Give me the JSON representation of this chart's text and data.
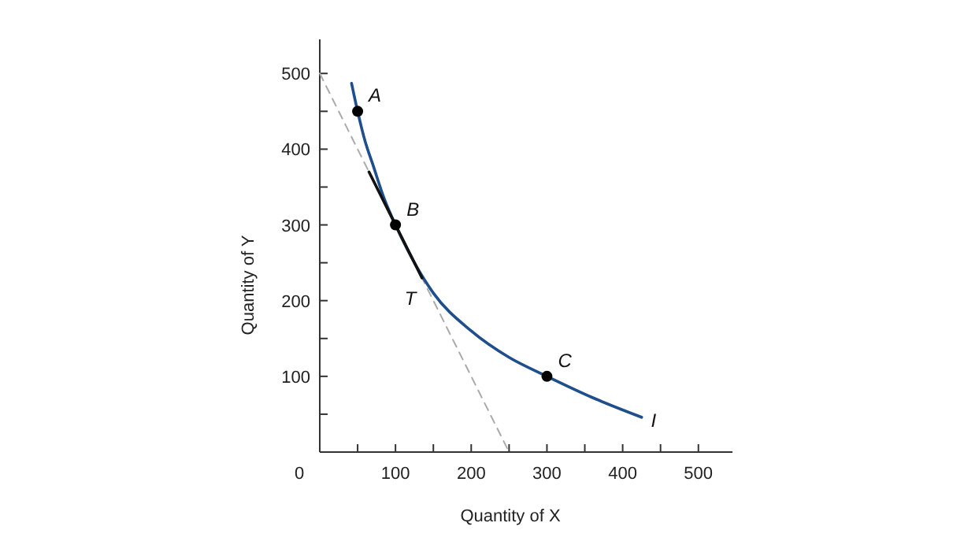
{
  "chart_data": {
    "type": "line",
    "xlabel": "Quantity of X",
    "ylabel": "Quantity of Y",
    "xlim": [
      0,
      545
    ],
    "ylim": [
      0,
      545
    ],
    "xticks": [
      {
        "value": 50,
        "label": null
      },
      100,
      {
        "value": 150,
        "label": null
      },
      200,
      {
        "value": 250,
        "label": null
      },
      300,
      {
        "value": 350,
        "label": null
      },
      400,
      {
        "value": 450,
        "label": null
      },
      500
    ],
    "yticks": [
      {
        "value": 50,
        "label": null
      },
      100,
      {
        "value": 150,
        "label": null
      },
      200,
      {
        "value": 250,
        "label": null
      },
      300,
      {
        "value": 350,
        "label": null
      },
      400,
      {
        "value": 450,
        "label": null
      },
      500
    ],
    "grid": false,
    "series": [
      {
        "color": "#aaaaaa",
        "line_style": "dashed",
        "x": [
          0,
          250
        ],
        "values": [
          500,
          0
        ]
      },
      {
        "color": "#1f4e8c",
        "line_style": "solid",
        "x": [
          42,
          50,
          60,
          70,
          85,
          100,
          125,
          150,
          200,
          250,
          300,
          360,
          425
        ],
        "values": [
          487,
          450,
          410,
          380,
          335,
          300,
          250,
          210,
          160,
          125,
          100,
          72,
          46
        ]
      },
      {
        "color": "#111111",
        "line_style": "solid",
        "x": [
          65,
          135
        ],
        "values": [
          370,
          230
        ]
      },
      {
        "type": "scatter",
        "color": "#000000",
        "marker": "circle",
        "x": [
          50,
          100,
          300
        ],
        "values": [
          450,
          300,
          100
        ]
      }
    ],
    "annotations": [
      "0",
      {
        "text": "A",
        "x": 50,
        "y": 450
      },
      {
        "text": "B",
        "x": 100,
        "y": 300
      },
      {
        "text": "C",
        "x": 300,
        "y": 100
      },
      {
        "text": "T",
        "x": 135,
        "y": 230
      },
      {
        "text": "I",
        "x": 425,
        "y": 46
      }
    ]
  }
}
